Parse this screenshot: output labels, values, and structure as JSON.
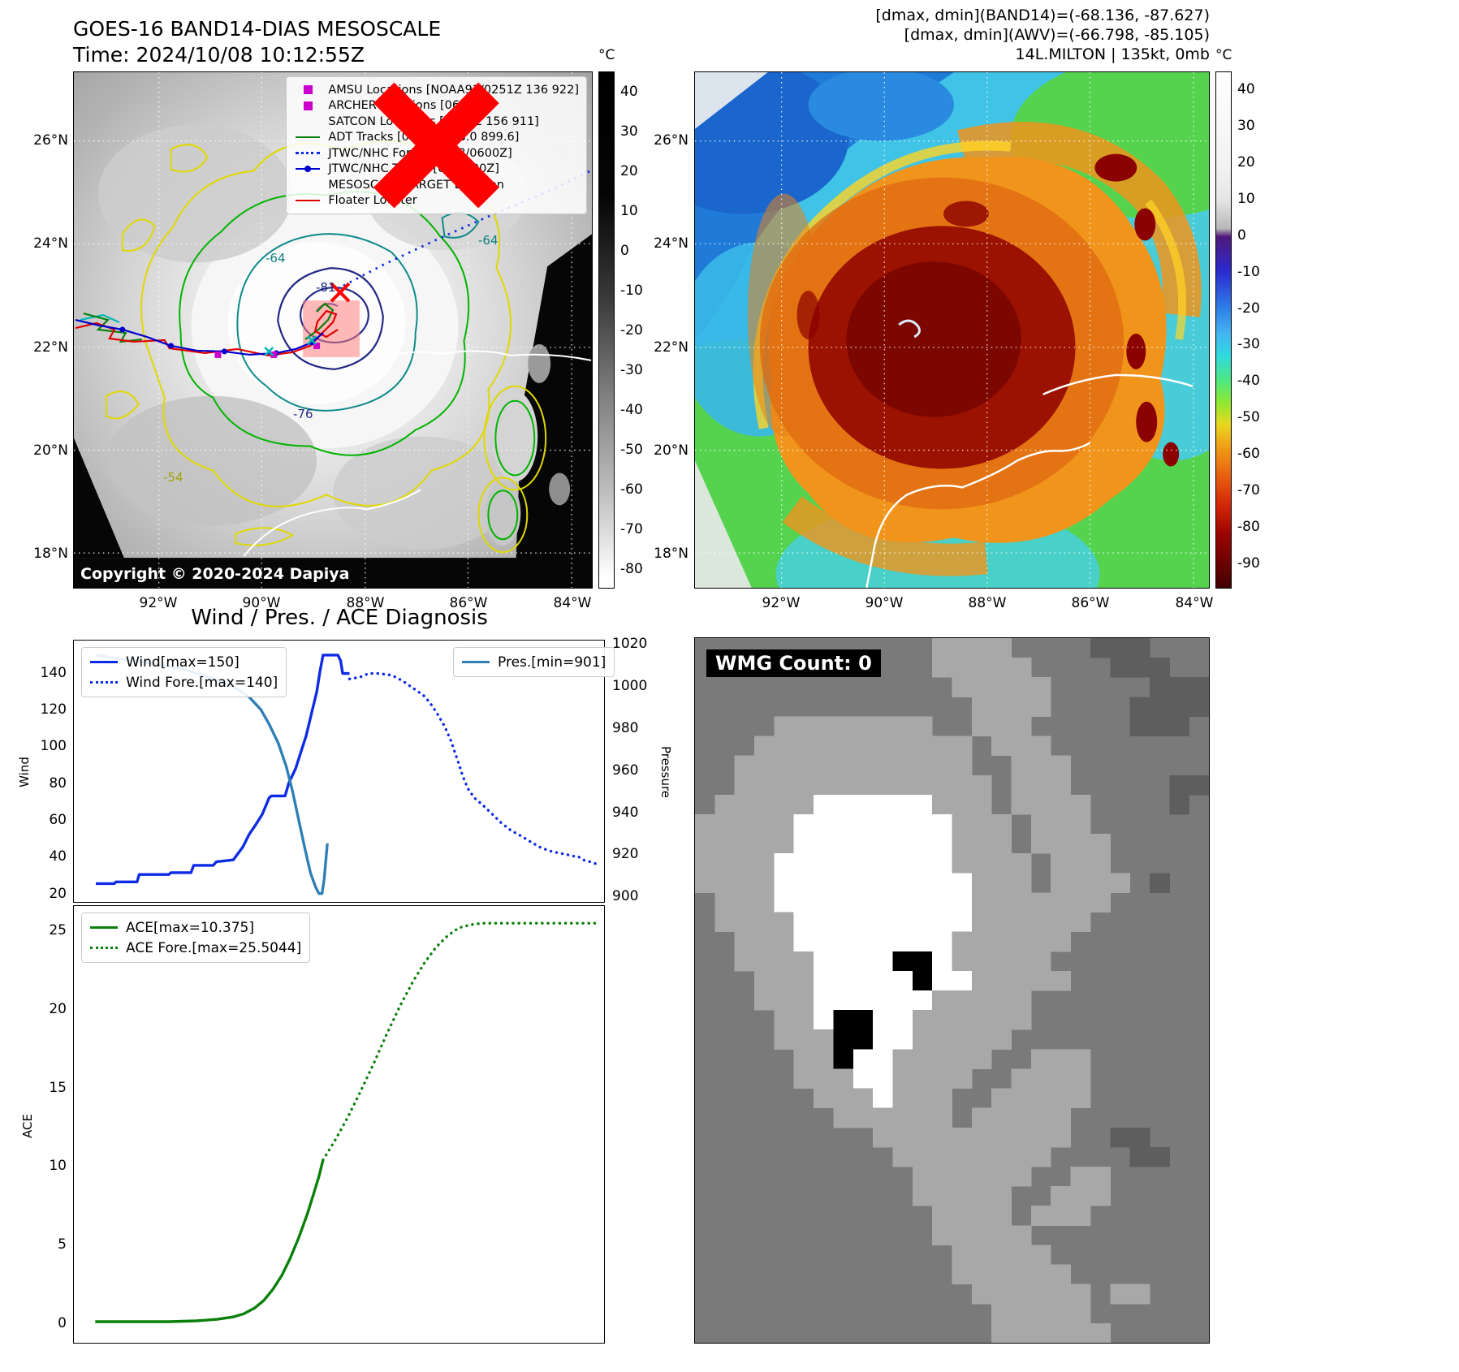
{
  "panel_tl": {
    "title_line1": "GOES-16 BAND14-DIAS MESOSCALE",
    "title_line2": "Time: 2024/10/08 10:12:55Z",
    "copyright": "Copyright © 2020-2024 Dapiya",
    "colorbar": {
      "unit": "°C",
      "ticks": [
        40,
        30,
        20,
        10,
        0,
        -10,
        -20,
        -30,
        -40,
        -50,
        -60,
        -70,
        -80
      ]
    },
    "lat_labels": [
      "26°N",
      "24°N",
      "22°N",
      "20°N",
      "18°N"
    ],
    "lon_labels": [
      "92°W",
      "90°W",
      "88°W",
      "86°W",
      "84°W"
    ],
    "legend": [
      {
        "label": "AMSU Locations [NOAA93/0251Z 136 922]",
        "marker": "square",
        "color": "#cc00cc"
      },
      {
        "label": "ARCHER Locations [0608Z]",
        "marker": "square",
        "color": "#cc00cc"
      },
      {
        "label": "SATCON Locations [0540Z 156 911]",
        "marker": "x",
        "color": "#00b8b8"
      },
      {
        "label": "ADT Tracks [0940Z 158.0 899.6]",
        "marker": "line",
        "color": "#0a800a"
      },
      {
        "label": "JTWC/NHC Forecast [08/0600Z]",
        "marker": "dotted",
        "color": "#0d2be6"
      },
      {
        "label": "JTWC/NHC Tracks [08/0600Z]",
        "marker": "line-dot",
        "color": "#0000cd"
      },
      {
        "label": "MESOSCALE/TARGET Location",
        "marker": "x",
        "color": "#ff0000"
      },
      {
        "label": "Floater Locater",
        "marker": "line",
        "color": "#e00000"
      }
    ],
    "contour_labels": [
      {
        "text": "-64"
      },
      {
        "text": "-81"
      },
      {
        "text": "-76"
      },
      {
        "text": "-54"
      },
      {
        "text": "-64"
      }
    ]
  },
  "panel_tr": {
    "header_line1": "[dmax, dmin](BAND14)=(-68.136, -87.627)",
    "header_line2": "[dmax, dmin](AWV)=(-66.798, -85.105)",
    "header_line3": "14L.MILTON | 135kt, 0mb",
    "colorbar": {
      "unit": "°C",
      "ticks": [
        40,
        30,
        20,
        10,
        0,
        -10,
        -20,
        -30,
        -40,
        -50,
        -60,
        -70,
        -80,
        -90
      ]
    },
    "lat_labels": [
      "26°N",
      "24°N",
      "22°N",
      "20°N",
      "18°N"
    ],
    "lon_labels": [
      "92°W",
      "90°W",
      "88°W",
      "86°W",
      "84°W"
    ]
  },
  "panel_bl": {
    "title": "Wind / Pres. / ACE Diagnosis",
    "wind_ylabel": "Wind",
    "pressure_ylabel": "Pressure",
    "ace_ylabel": "ACE",
    "legend_wind": [
      "Wind[max=150]",
      "Wind Fore.[max=140]"
    ],
    "legend_pres": "Pres.[min=901]",
    "legend_ace": [
      "ACE[max=10.375]",
      "ACE Fore.[max=25.5044]"
    ]
  },
  "panel_br": {
    "label": "WMG Count: 0",
    "grid": [
      "............llll....ddd...",
      "............lllll....ddd..",
      ".............lllll.....ddd",
      "..............llll....dddd",
      "....llllllll..lll.....ddd.",
      "...lllllllllll.lll........",
      "..llllllllllll..lll.......",
      "..lllllllllllll.lll.....dd",
      ".lllllwwwwwwlll.llll....d.",
      "lllllwwwwwwwwlll.lll......",
      "lllllwwwwwwwwlll.llll.....",
      "llllwwwwwwwwwllll.lll.....",
      "llllwwwwwwwwwwlll.llll.d..",
      ".lllwwwwwwwwwwlllllll.....",
      ".llllwwwwwwwwwllllll......",
      "..lllwwwwwwwwllllll.......",
      "..llllwwwwkkwlllll........",
      "...lllwwwwwkwwlllll.......",
      "...lllwwwwwwlllll.........",
      "....llwkkwwllllll.........",
      "....lllkkwwlllll..........",
      ".....llkwwlllll..lll......",
      ".....lllwwllll..llll......",
      "......lllwlll..lllll......",
      ".......llllll.lllll.......",
      ".........llllllllll..dd...",
      "..........llllllll....dd..",
      "...........llllll..ll.....",
      "...........lllll..lll.....",
      "............llll.lll......",
      "............lllll.........",
      ".............lllll........",
      ".............llllll.......",
      "..............llllll.ll...",
      "...............lllll......",
      "...............llllll....."
    ]
  },
  "chart_data": [
    {
      "type": "line",
      "title": "Wind / Pres. / ACE Diagnosis",
      "ylabel_left": "Wind",
      "ylabel_right": "Pressure",
      "ylim_left": [
        15,
        158
      ],
      "ylim_right": [
        897,
        1022
      ],
      "yticks_left": [
        20,
        40,
        60,
        80,
        100,
        120,
        140
      ],
      "yticks_right": [
        900,
        920,
        940,
        960,
        980,
        1000,
        1020
      ],
      "legend_position": "upper left / upper right",
      "grid": false,
      "series": [
        {
          "name": "Wind[max=150]",
          "axis": "left",
          "style": "solid",
          "color": "#0d2be6",
          "points": [
            [
              0.04,
              25
            ],
            [
              0.075,
              25
            ],
            [
              0.078,
              26
            ],
            [
              0.118,
              26
            ],
            [
              0.122,
              30
            ],
            [
              0.178,
              30
            ],
            [
              0.182,
              31
            ],
            [
              0.22,
              31
            ],
            [
              0.225,
              35
            ],
            [
              0.262,
              35
            ],
            [
              0.268,
              37
            ],
            [
              0.3,
              38
            ],
            [
              0.318,
              45
            ],
            [
              0.33,
              52
            ],
            [
              0.342,
              57
            ],
            [
              0.355,
              63
            ],
            [
              0.368,
              72
            ],
            [
              0.372,
              73
            ],
            [
              0.398,
              73
            ],
            [
              0.405,
              80
            ],
            [
              0.418,
              88
            ],
            [
              0.428,
              97
            ],
            [
              0.438,
              106
            ],
            [
              0.448,
              118
            ],
            [
              0.458,
              130
            ],
            [
              0.464,
              141
            ],
            [
              0.47,
              150
            ],
            [
              0.498,
              150
            ],
            [
              0.503,
              147
            ],
            [
              0.507,
              140
            ],
            [
              0.52,
              140
            ]
          ]
        },
        {
          "name": "Wind Fore.[max=140]",
          "axis": "left",
          "style": "dotted",
          "color": "#0d2be6",
          "points": [
            [
              0.52,
              137
            ],
            [
              0.54,
              138
            ],
            [
              0.556,
              140
            ],
            [
              0.575,
              140
            ],
            [
              0.6,
              139
            ],
            [
              0.62,
              136
            ],
            [
              0.64,
              132
            ],
            [
              0.66,
              128
            ],
            [
              0.672,
              124
            ],
            [
              0.686,
              118
            ],
            [
              0.7,
              111
            ],
            [
              0.712,
              103
            ],
            [
              0.724,
              93
            ],
            [
              0.734,
              84
            ],
            [
              0.744,
              77
            ],
            [
              0.756,
              72
            ],
            [
              0.772,
              68
            ],
            [
              0.79,
              63
            ],
            [
              0.808,
              58
            ],
            [
              0.826,
              54
            ],
            [
              0.845,
              51
            ],
            [
              0.862,
              48
            ],
            [
              0.88,
              45
            ],
            [
              0.898,
              43
            ],
            [
              0.912,
              42
            ],
            [
              0.93,
              41
            ],
            [
              0.945,
              40
            ],
            [
              0.952,
              40
            ],
            [
              0.962,
              38
            ],
            [
              0.975,
              37
            ],
            [
              0.985,
              36
            ]
          ]
        },
        {
          "name": "Pres.[min=901]",
          "axis": "right",
          "style": "solid",
          "color": "#2e7fb5",
          "points": [
            [
              0.04,
              1015
            ],
            [
              0.09,
              1013
            ],
            [
              0.15,
              1011
            ],
            [
              0.21,
              1008
            ],
            [
              0.26,
              1004
            ],
            [
              0.3,
              1000
            ],
            [
              0.33,
              995
            ],
            [
              0.352,
              989
            ],
            [
              0.368,
              982
            ],
            [
              0.385,
              973
            ],
            [
              0.4,
              962
            ],
            [
              0.412,
              950
            ],
            [
              0.424,
              936
            ],
            [
              0.436,
              922
            ],
            [
              0.446,
              911
            ],
            [
              0.456,
              904
            ],
            [
              0.462,
              901
            ],
            [
              0.468,
              901
            ],
            [
              0.472,
              908
            ],
            [
              0.478,
              925
            ]
          ]
        }
      ]
    },
    {
      "type": "line",
      "ylabel_left": "ACE",
      "ylim_left": [
        -1.3,
        26.6
      ],
      "yticks_left": [
        0,
        5,
        10,
        15,
        20,
        25
      ],
      "grid": false,
      "series": [
        {
          "name": "ACE[max=10.375]",
          "axis": "left",
          "style": "solid",
          "color": "#0a800a",
          "points": [
            [
              0.04,
              0.05
            ],
            [
              0.18,
              0.05
            ],
            [
              0.23,
              0.1
            ],
            [
              0.27,
              0.2
            ],
            [
              0.3,
              0.35
            ],
            [
              0.32,
              0.55
            ],
            [
              0.34,
              0.9
            ],
            [
              0.358,
              1.4
            ],
            [
              0.375,
              2.1
            ],
            [
              0.392,
              3.0
            ],
            [
              0.408,
              4.1
            ],
            [
              0.424,
              5.4
            ],
            [
              0.44,
              6.9
            ],
            [
              0.452,
              8.2
            ],
            [
              0.462,
              9.3
            ],
            [
              0.47,
              10.375
            ]
          ]
        },
        {
          "name": "ACE Fore.[max=25.5044]",
          "axis": "left",
          "style": "dotted",
          "color": "#0a800a",
          "points": [
            [
              0.47,
              10.375
            ],
            [
              0.492,
              11.6
            ],
            [
              0.515,
              13.0
            ],
            [
              0.54,
              14.7
            ],
            [
              0.565,
              16.5
            ],
            [
              0.59,
              18.4
            ],
            [
              0.615,
              20.2
            ],
            [
              0.64,
              21.8
            ],
            [
              0.662,
              23.0
            ],
            [
              0.684,
              24.0
            ],
            [
              0.705,
              24.7
            ],
            [
              0.726,
              25.2
            ],
            [
              0.748,
              25.4
            ],
            [
              0.77,
              25.5
            ],
            [
              0.985,
              25.5
            ]
          ]
        }
      ]
    }
  ]
}
